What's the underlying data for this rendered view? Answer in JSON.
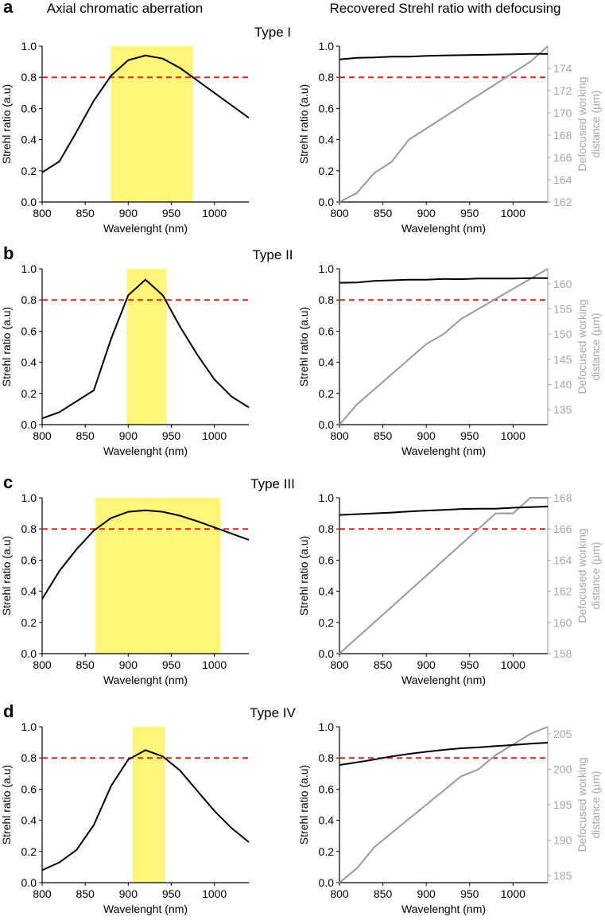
{
  "column_titles": {
    "left": "Axial chromatic aberration",
    "right": "Recovered Strehl ratio with defocusing"
  },
  "style": {
    "black_line": "#000000",
    "gray_line": "#999999",
    "threshold_color": "#e8211b",
    "band_color": "#fff57a",
    "axis_color": "#000000",
    "right_axis_color": "#a6a6a6"
  },
  "chart_data": [
    {
      "panel": "a",
      "title": "Type I",
      "left": {
        "type": "line",
        "xlabel": "Wavelenght (nm)",
        "ylabel": "Strehl ratio (a.u)",
        "xlim": [
          800,
          1040
        ],
        "ylim": [
          0,
          1
        ],
        "xticks": [
          800,
          850,
          900,
          950,
          1000
        ],
        "yticks": [
          0,
          0.2,
          0.4,
          0.6,
          0.8,
          1.0
        ],
        "threshold": 0.8,
        "band": [
          880,
          975
        ],
        "x": [
          800,
          820,
          840,
          860,
          880,
          900,
          920,
          940,
          960,
          980,
          1000,
          1020,
          1040
        ],
        "y": [
          0.19,
          0.26,
          0.45,
          0.65,
          0.81,
          0.91,
          0.94,
          0.92,
          0.86,
          0.78,
          0.7,
          0.62,
          0.54
        ]
      },
      "right": {
        "type": "line",
        "xlabel": "Wavelenght (nm)",
        "ylabel": "Strehl ratio (a.u)",
        "ylabel2": [
          "Defocused working",
          "distance (µm)"
        ],
        "xlim": [
          800,
          1040
        ],
        "ylim": [
          0,
          1
        ],
        "xticks": [
          800,
          850,
          900,
          950,
          1000
        ],
        "yticks": [
          0,
          0.2,
          0.4,
          0.6,
          0.8,
          1.0
        ],
        "y2lim": [
          162,
          176
        ],
        "y2ticks": [
          162,
          164,
          166,
          168,
          170,
          172,
          174
        ],
        "threshold": 0.8,
        "x": [
          800,
          820,
          840,
          860,
          880,
          900,
          920,
          940,
          960,
          980,
          1000,
          1020,
          1040
        ],
        "strehl": [
          0.915,
          0.925,
          0.927,
          0.932,
          0.932,
          0.937,
          0.94,
          0.942,
          0.944,
          0.946,
          0.948,
          0.95,
          0.95
        ],
        "distance": [
          162.0,
          162.8,
          164.6,
          165.6,
          167.6,
          168.6,
          169.6,
          170.6,
          171.6,
          172.6,
          173.6,
          174.6,
          176.0
        ]
      }
    },
    {
      "panel": "b",
      "title": "Type II",
      "left": {
        "type": "line",
        "xlabel": "Wavelenght (nm)",
        "ylabel": "Strehl ratio (a.u)",
        "xlim": [
          800,
          1040
        ],
        "ylim": [
          0,
          1
        ],
        "xticks": [
          800,
          850,
          900,
          950,
          1000
        ],
        "yticks": [
          0,
          0.2,
          0.4,
          0.6,
          0.8,
          1.0
        ],
        "threshold": 0.8,
        "band": [
          898,
          944
        ],
        "x": [
          800,
          820,
          840,
          860,
          880,
          900,
          920,
          940,
          960,
          980,
          1000,
          1020,
          1040
        ],
        "y": [
          0.04,
          0.08,
          0.15,
          0.22,
          0.55,
          0.83,
          0.93,
          0.83,
          0.63,
          0.45,
          0.29,
          0.18,
          0.11
        ]
      },
      "right": {
        "type": "line",
        "xlabel": "Wavelenght (nm)",
        "ylabel": "Strehl ratio (a.u)",
        "ylabel2": [
          "Defocused working",
          "distance (µm)"
        ],
        "xlim": [
          800,
          1040
        ],
        "ylim": [
          0,
          1
        ],
        "xticks": [
          800,
          850,
          900,
          950,
          1000
        ],
        "yticks": [
          0,
          0.2,
          0.4,
          0.6,
          0.8,
          1.0
        ],
        "y2lim": [
          132,
          163
        ],
        "y2ticks": [
          135,
          140,
          145,
          150,
          155,
          160
        ],
        "threshold": 0.8,
        "x": [
          800,
          820,
          840,
          860,
          880,
          900,
          920,
          940,
          960,
          980,
          1000,
          1020,
          1040
        ],
        "strehl": [
          0.91,
          0.912,
          0.922,
          0.926,
          0.93,
          0.93,
          0.935,
          0.933,
          0.937,
          0.937,
          0.937,
          0.94,
          0.94
        ],
        "distance": [
          132.0,
          136.0,
          139.0,
          142.0,
          145.0,
          148.0,
          150.0,
          153.0,
          155.0,
          157.0,
          159.0,
          161.0,
          163.0
        ]
      }
    },
    {
      "panel": "c",
      "title": "Type III",
      "left": {
        "type": "line",
        "xlabel": "Wavelenght (nm)",
        "ylabel": "Strehl ratio (a.u)",
        "xlim": [
          800,
          1040
        ],
        "ylim": [
          0,
          1
        ],
        "xticks": [
          800,
          850,
          900,
          950,
          1000
        ],
        "yticks": [
          0,
          0.2,
          0.4,
          0.6,
          0.8,
          1.0
        ],
        "threshold": 0.8,
        "band": [
          862,
          1007
        ],
        "x": [
          800,
          820,
          840,
          860,
          880,
          900,
          920,
          940,
          960,
          980,
          1000,
          1020,
          1040
        ],
        "y": [
          0.35,
          0.53,
          0.67,
          0.79,
          0.87,
          0.91,
          0.92,
          0.91,
          0.885,
          0.85,
          0.81,
          0.77,
          0.73
        ]
      },
      "right": {
        "type": "line",
        "xlabel": "Wavelenght (nm)",
        "ylabel": "Strehl ratio (a.u)",
        "ylabel2": [
          "Defocused working",
          "distance (µm)"
        ],
        "xlim": [
          800,
          1040
        ],
        "ylim": [
          0,
          1
        ],
        "xticks": [
          800,
          850,
          900,
          950,
          1000
        ],
        "yticks": [
          0,
          0.2,
          0.4,
          0.6,
          0.8,
          1.0
        ],
        "y2lim": [
          158,
          168
        ],
        "y2ticks": [
          158,
          160,
          162,
          164,
          166,
          168
        ],
        "threshold": 0.8,
        "x": [
          800,
          820,
          840,
          860,
          880,
          900,
          920,
          940,
          960,
          980,
          1000,
          1020,
          1040
        ],
        "strehl": [
          0.89,
          0.895,
          0.9,
          0.905,
          0.912,
          0.918,
          0.922,
          0.928,
          0.93,
          0.93,
          0.936,
          0.94,
          0.944
        ],
        "distance": [
          158.0,
          159.0,
          160.0,
          161.0,
          162.0,
          163.0,
          164.0,
          165.0,
          166.0,
          167.0,
          167.0,
          168.0,
          168.0
        ]
      }
    },
    {
      "panel": "d",
      "title": "Type IV",
      "left": {
        "type": "line",
        "xlabel": "Wavelenght (nm)",
        "ylabel": "Strehl ratio (a.u)",
        "xlim": [
          800,
          1040
        ],
        "ylim": [
          0,
          1
        ],
        "xticks": [
          800,
          850,
          900,
          950,
          1000
        ],
        "yticks": [
          0,
          0.2,
          0.4,
          0.6,
          0.8,
          1.0
        ],
        "threshold": 0.8,
        "band": [
          905,
          943
        ],
        "x": [
          800,
          820,
          840,
          860,
          880,
          900,
          920,
          940,
          960,
          980,
          1000,
          1020,
          1040
        ],
        "y": [
          0.08,
          0.13,
          0.21,
          0.37,
          0.62,
          0.79,
          0.85,
          0.81,
          0.72,
          0.59,
          0.46,
          0.35,
          0.26
        ]
      },
      "right": {
        "type": "line",
        "xlabel": "Wavelenght (nm)",
        "ylabel": "Strehl ratio (a.u)",
        "ylabel2": [
          "Defocused working",
          "distance (µm)"
        ],
        "xlim": [
          800,
          1040
        ],
        "ylim": [
          0,
          1
        ],
        "xticks": [
          800,
          850,
          900,
          950,
          1000
        ],
        "yticks": [
          0,
          0.2,
          0.4,
          0.6,
          0.8,
          1.0
        ],
        "y2lim": [
          184,
          206
        ],
        "y2ticks": [
          185,
          190,
          195,
          200,
          205
        ],
        "threshold": 0.8,
        "x": [
          800,
          820,
          840,
          860,
          880,
          900,
          920,
          940,
          960,
          980,
          1000,
          1020,
          1040
        ],
        "strehl": [
          0.755,
          0.772,
          0.79,
          0.81,
          0.826,
          0.84,
          0.852,
          0.862,
          0.868,
          0.876,
          0.883,
          0.892,
          0.898
        ],
        "distance": [
          184.0,
          186.0,
          189.0,
          191.0,
          193.0,
          195.0,
          197.0,
          199.0,
          200.0,
          202.0,
          203.5,
          205.0,
          206.0
        ]
      }
    }
  ]
}
